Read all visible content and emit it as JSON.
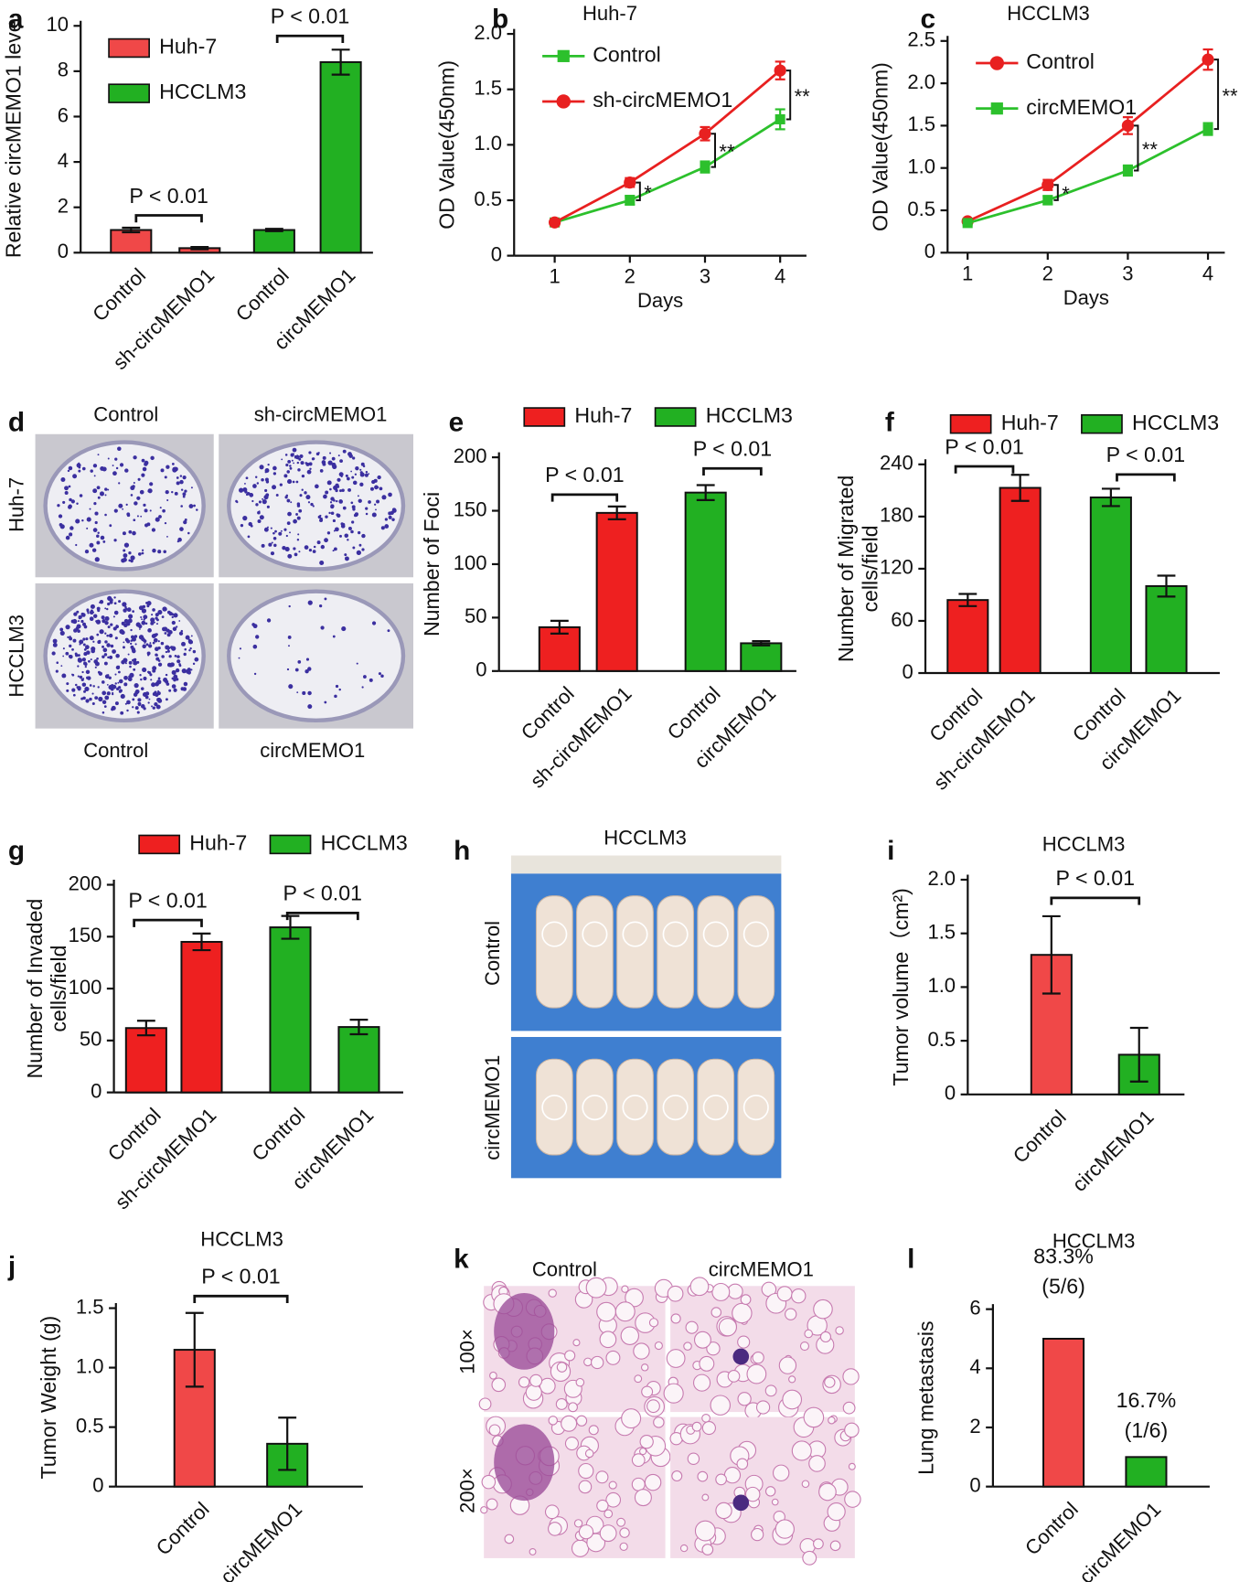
{
  "chart_data": [
    {
      "panel": "a",
      "type": "bar",
      "ylabel": "Relative circMEMO1 leve",
      "categories": [
        "Control",
        "sh-circMEMO1",
        "Control",
        "circMEMO1"
      ],
      "series": [
        {
          "name": "Huh-7",
          "color": "#f04848",
          "values": [
            1.0,
            0.2,
            null,
            null
          ],
          "errors": [
            0.1,
            0.05,
            null,
            null
          ]
        },
        {
          "name": "HCCLM3",
          "color": "#22b022",
          "values": [
            null,
            null,
            1.0,
            8.4
          ],
          "errors": [
            null,
            null,
            0.05,
            0.55
          ]
        }
      ],
      "ylim": [
        0,
        10
      ],
      "yticks": [
        0,
        2,
        4,
        6,
        8,
        10
      ],
      "legend": "upper left",
      "annotations": [
        "P < 0.01",
        "P < 0.01"
      ]
    },
    {
      "panel": "b",
      "type": "line",
      "title": "Huh-7",
      "ylabel": "OD Value(450nm)",
      "xlabel": "Days",
      "x": [
        1,
        2,
        3,
        4
      ],
      "series": [
        {
          "name": "Control",
          "color": "#2cc02c",
          "marker": "square",
          "values": [
            0.3,
            0.5,
            0.8,
            1.23
          ],
          "errors": [
            0.02,
            0.04,
            0.05,
            0.09
          ]
        },
        {
          "name": "sh-circMEMO1",
          "color": "#e82020",
          "marker": "circle",
          "values": [
            0.3,
            0.66,
            1.1,
            1.67
          ],
          "errors": [
            0.02,
            0.04,
            0.06,
            0.08
          ]
        }
      ],
      "xlim": [
        0.46,
        4.35
      ],
      "xticks": [
        1,
        2,
        3,
        4
      ],
      "ylim": [
        0,
        2.0
      ],
      "yticks": [
        0,
        0.5,
        {
          "value": 1.0,
          "label": "1.0"
        },
        1.5,
        {
          "value": 2.0,
          "label": "2.0"
        }
      ],
      "legend": "upper left",
      "annotations": [
        "*",
        "**",
        "**"
      ]
    },
    {
      "panel": "c",
      "type": "line",
      "title": "HCCLM3",
      "ylabel": "OD Value(450nm)",
      "xlabel": "Days",
      "x": [
        1,
        2,
        3,
        4
      ],
      "series": [
        {
          "name": "Control",
          "color": "#e82020",
          "marker": "circle",
          "values": [
            0.37,
            0.8,
            1.5,
            2.28
          ],
          "errors": [
            0.02,
            0.06,
            0.1,
            0.12
          ]
        },
        {
          "name": "circMEMO1",
          "color": "#2cc02c",
          "marker": "square",
          "values": [
            0.35,
            0.62,
            0.97,
            1.46
          ],
          "errors": [
            0.02,
            0.05,
            0.06,
            0.07
          ]
        }
      ],
      "xlim": [
        0.75,
        4.21
      ],
      "xticks": [
        1,
        2,
        3,
        4
      ],
      "ylim": [
        0,
        2.5
      ],
      "yticks": [
        0,
        0.5,
        {
          "value": 1.0,
          "label": "1.0"
        },
        1.5,
        {
          "value": 2.0,
          "label": "2.0"
        },
        2.5
      ],
      "legend": "upper left",
      "annotations": [
        "*",
        "**",
        "**"
      ]
    },
    {
      "panel": "e",
      "type": "bar",
      "ylabel": "Number of Foci",
      "categories": [
        "Control",
        "sh-circMEMO1",
        "Control",
        "circMEMO1"
      ],
      "series": [
        {
          "name": "Huh-7",
          "color": "#ee2020",
          "values": [
            41,
            148,
            null,
            null
          ],
          "errors": [
            6,
            6,
            null,
            null
          ]
        },
        {
          "name": "HCCLM3",
          "color": "#22b022",
          "values": [
            null,
            null,
            167,
            26
          ],
          "errors": [
            null,
            null,
            7,
            2
          ]
        }
      ],
      "ylim": [
        0,
        200
      ],
      "yticks": [
        0,
        50,
        100,
        150,
        200
      ],
      "legend": "top",
      "annotations": [
        "P < 0.01",
        "P < 0.01"
      ]
    },
    {
      "panel": "f",
      "type": "bar",
      "ylabel": [
        "Number of Migrated",
        "cells/field"
      ],
      "categories": [
        "Control",
        "sh-circMEMO1",
        "Control",
        "circMEMO1"
      ],
      "series": [
        {
          "name": "Huh-7",
          "color": "#ee2020",
          "values": [
            84,
            213,
            null,
            null
          ],
          "errors": [
            7,
            15,
            null,
            null
          ]
        },
        {
          "name": "HCCLM3",
          "color": "#22b022",
          "values": [
            null,
            null,
            202,
            100
          ],
          "errors": [
            null,
            null,
            10,
            12
          ]
        }
      ],
      "ylim": [
        0,
        240
      ],
      "yticks": [
        0,
        60,
        120,
        180,
        240
      ],
      "legend": "top",
      "annotations": [
        "P < 0.01",
        "P < 0.01"
      ]
    },
    {
      "panel": "g",
      "type": "bar",
      "ylabel": [
        "Number of Invaded",
        "cells/field"
      ],
      "categories": [
        "Control",
        "sh-circMEMO1",
        "Control",
        "circMEMO1"
      ],
      "series": [
        {
          "name": "Huh-7",
          "color": "#ee2020",
          "values": [
            62,
            145,
            null,
            null
          ],
          "errors": [
            7,
            8,
            null,
            null
          ]
        },
        {
          "name": "HCCLM3",
          "color": "#22b022",
          "values": [
            null,
            null,
            159,
            63
          ],
          "errors": [
            null,
            null,
            11,
            7
          ]
        }
      ],
      "ylim": [
        0,
        200
      ],
      "yticks": [
        0,
        50,
        100,
        150,
        200
      ],
      "legend": "top",
      "annotations": [
        "P < 0.01",
        "P < 0.01"
      ]
    },
    {
      "panel": "i",
      "type": "bar",
      "title": "HCCLM3",
      "ylabel": "Tumor volume（cm²)",
      "categories": [
        "Control",
        "circMEMO1"
      ],
      "values": [
        1.3,
        0.37
      ],
      "errors": [
        0.36,
        0.25
      ],
      "colors": [
        "#f04848",
        "#22b022"
      ],
      "ylim": [
        0,
        2.0
      ],
      "yticks": [
        0,
        0.5,
        {
          "value": 1.0,
          "label": "1.0"
        },
        1.5,
        {
          "value": 2.0,
          "label": "2.0"
        }
      ],
      "annotations": [
        "P < 0.01"
      ]
    },
    {
      "panel": "j",
      "type": "bar",
      "title": "HCCLM3",
      "ylabel": "Tumor Weight (g)",
      "categories": [
        "Control",
        "circMEMO1"
      ],
      "values": [
        1.15,
        0.36
      ],
      "errors": [
        0.31,
        0.22
      ],
      "colors": [
        "#f04848",
        "#22b022"
      ],
      "ylim": [
        0,
        1.5
      ],
      "yticks": [
        0,
        0.5,
        {
          "value": 1.0,
          "label": "1.0"
        },
        1.5
      ],
      "annotations": [
        "P < 0.01"
      ]
    },
    {
      "panel": "l",
      "type": "bar",
      "title": "HCCLM3",
      "ylabel": "Lung metastasis",
      "categories": [
        "Control",
        "circMEMO1"
      ],
      "values": [
        5,
        1
      ],
      "colors": [
        "#f04848",
        "#22b022"
      ],
      "ylim": [
        0,
        6
      ],
      "yticks": [
        0,
        2,
        4,
        6
      ],
      "annotations": [
        "83.3%",
        "(5/6)",
        "16.7%",
        "(1/6)"
      ]
    }
  ],
  "images": [
    {
      "panel": "d",
      "col_labels": [
        "Control",
        "sh-circMEMO1"
      ],
      "row_labels": [
        "Huh-7",
        "HCCLM3"
      ],
      "bottom_labels": [
        "Control",
        "circMEMO1"
      ]
    },
    {
      "panel": "h",
      "title": "HCCLM3",
      "row_labels": [
        "Control",
        "circMEMO1"
      ]
    },
    {
      "panel": "k",
      "col_labels": [
        "Control",
        "circMEMO1"
      ],
      "row_labels": [
        "100×",
        "200×"
      ]
    }
  ]
}
